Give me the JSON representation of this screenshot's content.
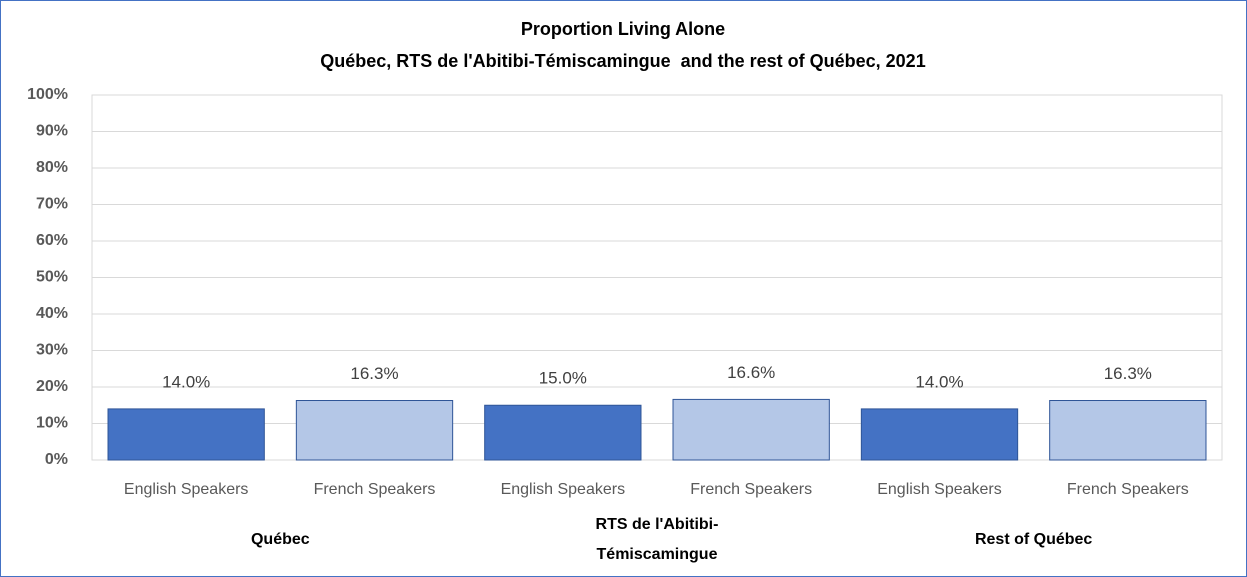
{
  "chart_data": {
    "type": "bar",
    "title": "Proportion Living Alone",
    "subtitle": "Québec, RTS de l'Abitibi-Témiscamingue  and the rest of Québec, 2021",
    "categories": [
      "English Speakers",
      "French Speakers",
      "English Speakers",
      "French Speakers",
      "English Speakers",
      "French Speakers"
    ],
    "group_labels": [
      "Québec",
      "RTS de l'Abitibi-Témiscamingue",
      "Rest of Québec"
    ],
    "values": [
      14.0,
      16.3,
      15.0,
      16.6,
      14.0,
      16.3
    ],
    "value_labels": [
      "14.0%",
      "16.3%",
      "15.0%",
      "16.6%",
      "14.0%",
      "16.3%"
    ],
    "colors": [
      "#4472c4",
      "#b4c7e7",
      "#4472c4",
      "#b4c7e7",
      "#4472c4",
      "#b4c7e7"
    ],
    "ylim": [
      0,
      100
    ],
    "yticks": [
      {
        "value": 0,
        "label": "0%"
      },
      {
        "value": 10,
        "label": "10%"
      },
      {
        "value": 20,
        "label": "20%"
      },
      {
        "value": 30,
        "label": "30%"
      },
      {
        "value": 40,
        "label": "40%"
      },
      {
        "value": 50,
        "label": "50%"
      },
      {
        "value": 60,
        "label": "60%"
      },
      {
        "value": 70,
        "label": "70%"
      },
      {
        "value": 80,
        "label": "80%"
      },
      {
        "value": 90,
        "label": "90%"
      },
      {
        "value": 100,
        "label": "100%"
      }
    ],
    "grid": true
  }
}
